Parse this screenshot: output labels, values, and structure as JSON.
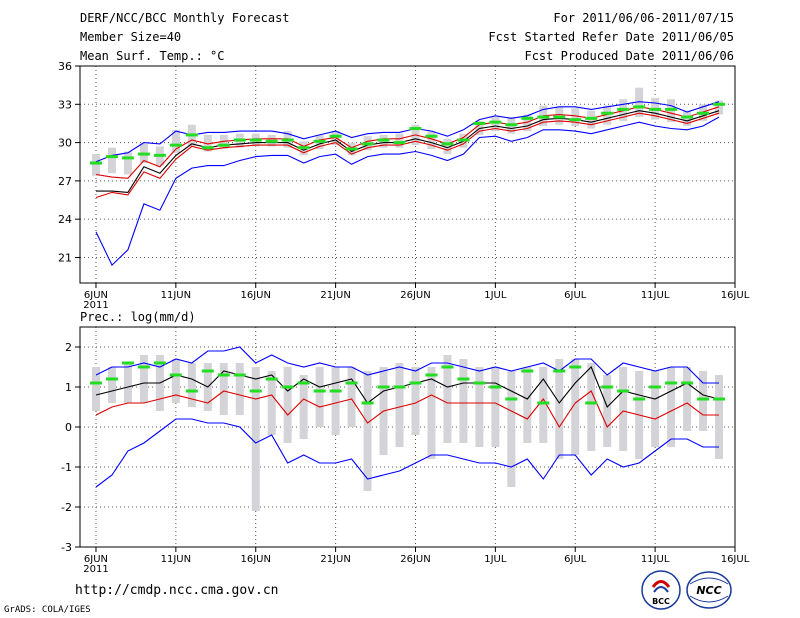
{
  "header": {
    "title": "DERF/NCC/BCC Monthly Forecast",
    "member_size": "Member Size=40",
    "variable": "Mean Surf. Temp.: °C",
    "period": "For 2011/06/06-2011/07/15",
    "started": "Fcst Started Refer Date 2011/06/05",
    "produced": "Fcst Produced Date 2011/06/06"
  },
  "footer": {
    "url": "http://cmdp.ncc.cma.gov.cn",
    "credit": "GrADS: COLA/IGES",
    "logo_bcc": "BCC",
    "logo_ncc": "NCC"
  },
  "colors": {
    "blue": "#0000ff",
    "red": "#dd0000",
    "black": "#000000",
    "green": "#22dd22",
    "gray": "#d4d4d8",
    "dots": "#555555"
  },
  "chart_data": [
    {
      "type": "line",
      "title": "Mean Surf. Temp.: °C",
      "ylim": [
        19,
        36
      ],
      "yticks": [
        21,
        24,
        27,
        30,
        33,
        36
      ],
      "xlim": [
        5,
        45
      ],
      "x_ticks": [
        {
          "x": 6,
          "label": "6JUN",
          "sub": "2011"
        },
        {
          "x": 11,
          "label": "11JUN"
        },
        {
          "x": 16,
          "label": "16JUN"
        },
        {
          "x": 21,
          "label": "21JUN"
        },
        {
          "x": 26,
          "label": "26JUN"
        },
        {
          "x": 31,
          "label": "1JUL"
        },
        {
          "x": 36,
          "label": "6JUL"
        },
        {
          "x": 41,
          "label": "11JUL"
        },
        {
          "x": 46,
          "label": "16JUL"
        }
      ],
      "x": [
        6,
        7,
        8,
        9,
        10,
        11,
        12,
        13,
        14,
        15,
        16,
        17,
        18,
        19,
        20,
        21,
        22,
        23,
        24,
        25,
        26,
        27,
        28,
        29,
        30,
        31,
        32,
        33,
        34,
        35,
        36,
        37,
        38,
        39,
        40,
        41,
        42,
        43,
        44,
        45
      ],
      "series": [
        {
          "name": "ensemble max",
          "color": "blue",
          "values": [
            28.5,
            29.0,
            29.2,
            30.0,
            29.9,
            30.9,
            30.6,
            30.8,
            30.8,
            30.9,
            30.9,
            30.9,
            30.7,
            30.3,
            30.6,
            30.9,
            30.4,
            30.7,
            30.8,
            30.8,
            31.1,
            30.9,
            30.5,
            31.0,
            31.8,
            32.1,
            31.9,
            32.1,
            32.6,
            32.8,
            32.8,
            32.6,
            32.8,
            33.0,
            33.2,
            33.1,
            32.9,
            32.4,
            32.8,
            33.2
          ]
        },
        {
          "name": "ensemble min",
          "color": "blue",
          "values": [
            23.0,
            20.4,
            21.6,
            25.2,
            24.7,
            27.2,
            28.0,
            28.2,
            28.2,
            28.6,
            28.9,
            29.0,
            29.0,
            28.4,
            28.9,
            29.1,
            28.3,
            28.9,
            29.1,
            29.1,
            29.3,
            29.0,
            28.6,
            29.1,
            30.4,
            30.5,
            30.1,
            30.4,
            31.0,
            31.0,
            30.9,
            30.7,
            31.0,
            31.3,
            31.6,
            31.3,
            31.1,
            31.0,
            31.3,
            32.0
          ]
        },
        {
          "name": "ensemble mean",
          "color": "black",
          "values": [
            26.2,
            26.2,
            26.1,
            28.1,
            27.6,
            29.0,
            29.9,
            29.6,
            29.8,
            29.9,
            30.0,
            30.0,
            30.0,
            29.4,
            29.9,
            30.2,
            29.3,
            29.8,
            30.0,
            30.0,
            30.3,
            30.0,
            29.6,
            30.1,
            31.1,
            31.3,
            31.1,
            31.3,
            31.8,
            31.9,
            31.8,
            31.6,
            31.9,
            32.2,
            32.5,
            32.3,
            32.0,
            31.7,
            32.1,
            32.5
          ]
        },
        {
          "name": "control run",
          "color": "red",
          "values": [
            25.7,
            26.1,
            25.9,
            27.7,
            27.2,
            28.7,
            29.7,
            29.4,
            29.6,
            29.7,
            29.8,
            29.8,
            29.8,
            29.2,
            29.7,
            30.0,
            29.1,
            29.6,
            29.8,
            29.8,
            30.1,
            29.8,
            29.4,
            29.9,
            30.9,
            31.1,
            30.9,
            31.1,
            31.6,
            31.7,
            31.6,
            31.4,
            31.7,
            32.0,
            32.3,
            32.1,
            31.8,
            31.5,
            31.9,
            32.3
          ]
        },
        {
          "name": "upper spread",
          "color": "red",
          "values": [
            27.5,
            27.3,
            27.2,
            28.6,
            28.1,
            29.5,
            30.2,
            29.9,
            30.1,
            30.2,
            30.3,
            30.3,
            30.3,
            29.7,
            30.2,
            30.4,
            29.6,
            30.1,
            30.3,
            30.3,
            30.6,
            30.3,
            29.9,
            30.4,
            31.4,
            31.6,
            31.4,
            31.6,
            32.1,
            32.2,
            32.1,
            31.9,
            32.2,
            32.5,
            32.8,
            32.6,
            32.3,
            32.0,
            32.4,
            32.8
          ]
        }
      ],
      "observed": [
        28.4,
        28.9,
        28.8,
        29.1,
        29.0,
        29.8,
        30.6,
        29.6,
        29.8,
        30.2,
        30.2,
        30.1,
        30.2,
        29.6,
        30.1,
        30.5,
        29.5,
        29.9,
        30.2,
        30.0,
        31.1,
        30.5,
        29.9,
        30.2,
        31.5,
        31.6,
        31.4,
        31.9,
        32.0,
        32.0,
        31.8,
        31.9,
        32.3,
        32.6,
        32.8,
        32.6,
        32.6,
        32.0,
        32.3,
        33.0
      ],
      "box_low": [
        27.4,
        27.6,
        27.5,
        28.4,
        28.2,
        29.2,
        29.7,
        29.3,
        29.5,
        29.6,
        29.7,
        29.7,
        29.6,
        29.0,
        29.5,
        29.8,
        29.0,
        29.4,
        29.6,
        29.6,
        29.8,
        29.5,
        29.1,
        29.6,
        30.6,
        30.9,
        30.7,
        30.9,
        31.3,
        31.4,
        31.3,
        31.1,
        31.4,
        31.7,
        32.0,
        31.8,
        31.6,
        31.3,
        31.7,
        32.2
      ],
      "box_high": [
        29.1,
        29.6,
        29.3,
        29.9,
        29.7,
        31.0,
        31.4,
        30.6,
        30.6,
        30.7,
        30.7,
        30.6,
        30.9,
        30.1,
        30.6,
        30.9,
        30.0,
        30.5,
        30.6,
        30.7,
        31.4,
        30.9,
        30.3,
        30.7,
        31.7,
        32.0,
        32.0,
        32.2,
        32.9,
        32.8,
        32.7,
        32.5,
        32.9,
        33.4,
        34.3,
        33.5,
        33.4,
        32.5,
        33.0,
        33.3
      ]
    },
    {
      "type": "line",
      "title": "Prec.: log(mm/d)",
      "ylim": [
        -3,
        2.5
      ],
      "yticks": [
        -3,
        -2,
        -1,
        0,
        1,
        2
      ],
      "xlim": [
        5,
        45
      ],
      "x_ticks": [
        {
          "x": 6,
          "label": "6JUN",
          "sub": "2011"
        },
        {
          "x": 11,
          "label": "11JUN"
        },
        {
          "x": 16,
          "label": "16JUN"
        },
        {
          "x": 21,
          "label": "21JUN"
        },
        {
          "x": 26,
          "label": "26JUN"
        },
        {
          "x": 31,
          "label": "1JUL"
        },
        {
          "x": 36,
          "label": "6JUL"
        },
        {
          "x": 41,
          "label": "11JUL"
        },
        {
          "x": 46,
          "label": "16JUL"
        }
      ],
      "x": [
        6,
        7,
        8,
        9,
        10,
        11,
        12,
        13,
        14,
        15,
        16,
        17,
        18,
        19,
        20,
        21,
        22,
        23,
        24,
        25,
        26,
        27,
        28,
        29,
        30,
        31,
        32,
        33,
        34,
        35,
        36,
        37,
        38,
        39,
        40,
        41,
        42,
        43,
        44,
        45
      ],
      "series": [
        {
          "name": "ensemble max",
          "color": "blue",
          "values": [
            1.3,
            1.5,
            1.5,
            1.6,
            1.5,
            1.7,
            1.6,
            1.9,
            1.9,
            2.0,
            1.6,
            1.8,
            1.6,
            1.5,
            1.6,
            1.5,
            1.5,
            1.3,
            1.4,
            1.5,
            1.4,
            1.6,
            1.6,
            1.5,
            1.4,
            1.5,
            1.4,
            1.5,
            1.6,
            1.4,
            1.7,
            1.7,
            1.3,
            1.6,
            1.5,
            1.4,
            1.5,
            1.5,
            1.1,
            1.1
          ]
        },
        {
          "name": "ensemble min",
          "color": "blue",
          "values": [
            -1.5,
            -1.2,
            -0.6,
            -0.4,
            -0.1,
            0.2,
            0.2,
            0.1,
            0.1,
            0.0,
            -0.4,
            -0.2,
            -0.9,
            -0.7,
            -0.9,
            -0.9,
            -0.8,
            -1.3,
            -1.2,
            -1.1,
            -0.9,
            -0.7,
            -0.7,
            -0.8,
            -0.9,
            -0.9,
            -1.0,
            -0.8,
            -1.3,
            -0.7,
            -0.7,
            -1.2,
            -0.8,
            -1.0,
            -0.9,
            -0.6,
            -0.3,
            -0.3,
            -0.5,
            -0.5
          ]
        },
        {
          "name": "ensemble mean",
          "color": "black",
          "values": [
            0.8,
            0.9,
            1.0,
            1.1,
            1.1,
            1.3,
            1.2,
            1.0,
            1.4,
            1.3,
            1.2,
            1.3,
            0.9,
            1.2,
            1.0,
            1.1,
            1.2,
            0.6,
            0.9,
            1.0,
            1.1,
            1.2,
            1.0,
            1.1,
            1.1,
            1.1,
            0.9,
            0.7,
            1.2,
            0.6,
            1.1,
            1.5,
            0.5,
            0.9,
            0.8,
            0.7,
            0.9,
            1.1,
            0.8,
            0.7
          ]
        },
        {
          "name": "control run",
          "color": "red",
          "values": [
            0.3,
            0.5,
            0.6,
            0.6,
            0.7,
            0.8,
            0.7,
            0.6,
            0.9,
            0.8,
            0.7,
            0.8,
            0.3,
            0.7,
            0.5,
            0.6,
            0.7,
            0.1,
            0.4,
            0.5,
            0.6,
            0.8,
            0.6,
            0.6,
            0.6,
            0.6,
            0.4,
            0.2,
            0.7,
            0.0,
            0.6,
            0.9,
            0.0,
            0.4,
            0.3,
            0.2,
            0.4,
            0.6,
            0.3,
            0.3
          ]
        }
      ],
      "observed": [
        1.1,
        1.2,
        1.6,
        1.5,
        1.6,
        1.3,
        0.9,
        1.4,
        1.3,
        1.3,
        0.9,
        1.2,
        1.0,
        1.1,
        0.9,
        0.9,
        1.1,
        0.6,
        1.0,
        1.0,
        1.1,
        1.3,
        1.5,
        1.2,
        1.1,
        1.0,
        0.7,
        1.4,
        0.6,
        1.4,
        1.5,
        0.6,
        1.0,
        0.9,
        0.7,
        1.0,
        1.1,
        1.1,
        0.7,
        0.7
      ],
      "box_low": [
        0.4,
        0.6,
        0.6,
        0.6,
        0.4,
        0.6,
        0.5,
        0.4,
        0.3,
        0.3,
        -2.1,
        -0.2,
        -0.4,
        -0.3,
        0.0,
        -0.2,
        0.0,
        -1.6,
        -0.7,
        -0.5,
        -0.2,
        -0.8,
        -0.4,
        -0.4,
        -0.5,
        -0.5,
        -1.5,
        -0.4,
        -0.4,
        -0.8,
        -0.7,
        -0.6,
        -0.5,
        -0.6,
        -0.8,
        -0.5,
        -0.5,
        -0.1,
        -0.1,
        -0.8
      ],
      "box_high": [
        1.5,
        1.5,
        1.6,
        1.8,
        1.8,
        1.7,
        1.6,
        1.6,
        1.6,
        1.6,
        1.5,
        1.4,
        1.5,
        1.3,
        1.5,
        1.5,
        1.5,
        1.4,
        1.5,
        1.6,
        1.5,
        1.5,
        1.8,
        1.7,
        1.5,
        1.5,
        1.4,
        1.5,
        1.5,
        1.7,
        1.7,
        1.6,
        1.3,
        1.5,
        1.4,
        1.4,
        1.5,
        1.5,
        1.4,
        1.3
      ]
    }
  ]
}
